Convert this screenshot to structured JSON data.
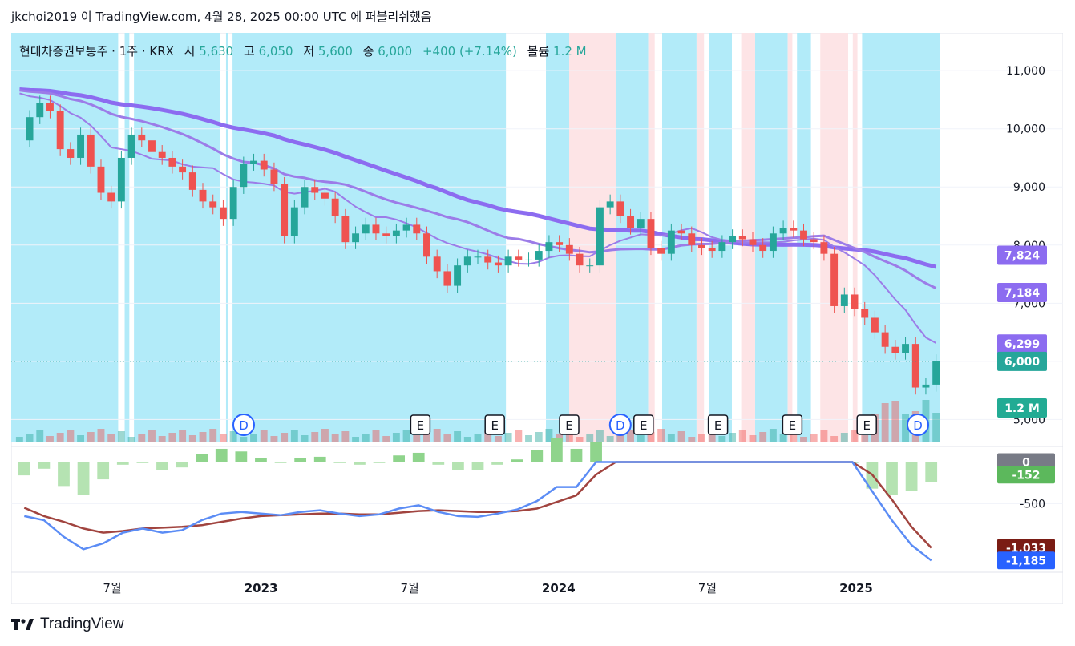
{
  "header": {
    "publish_text": "jkchoi2019 이 TradingView.com, 4월 28, 2025 00:00 UTC 에 퍼블리쉬했음"
  },
  "footer": {
    "brand": "TradingView"
  },
  "legend": {
    "symbol": "현대차증권보통주 · 1주 · KRX",
    "open_label": "시",
    "open": "5,630",
    "high_label": "고",
    "high": "6,050",
    "low_label": "저",
    "low": "5,600",
    "close_label": "종",
    "close": "6,000",
    "change": "+400 (+7.14%)",
    "volume_label": "볼륨",
    "volume": "1.2 M"
  },
  "colors": {
    "up": "#26a69a",
    "down": "#ef5350",
    "bg_blue": "#b2ebf9",
    "bg_pink": "#fde4e6",
    "ma_thick": "#8c6cf0",
    "ma_thin": "#9c7ce8",
    "ma_gold": "#f5c26b",
    "macd_line": "#5b8cf5",
    "signal_line": "#a1443f",
    "hist_up": "#8fd48c",
    "hist_down": "#b5e3b2"
  },
  "chart_data": [
    {
      "type": "candlestick",
      "timeframe": "1W",
      "x_ticks": [
        "7월",
        "2023",
        "7월",
        "2024",
        "7월",
        "2025"
      ],
      "y_ticks": [
        "11,000",
        "10,000",
        "9,000",
        "8,000",
        "7,000",
        "6,000",
        "5,000"
      ],
      "ylim": [
        4620,
        11650
      ],
      "series": [
        {
          "name": "MA long",
          "last_value": "7,824"
        },
        {
          "name": "MA mid",
          "last_value": "7,184"
        },
        {
          "name": "MA short",
          "last_value": "6,299"
        }
      ],
      "last_price": "6,000",
      "volume_last": "1.2 M",
      "event_markers": [
        "D",
        "E",
        "E",
        "E",
        "D",
        "E",
        "E",
        "E",
        "E",
        "D"
      ],
      "ohlc_last": {
        "open": 5630,
        "high": 6050,
        "low": 5600,
        "close": 6000
      },
      "price_path": [
        9800,
        10200,
        10450,
        10300,
        9650,
        9500,
        9900,
        9350,
        8900,
        8750,
        9500,
        9900,
        9800,
        9600,
        9500,
        9350,
        9250,
        8950,
        8750,
        8650,
        8450,
        9000,
        9400,
        9450,
        9300,
        9050,
        8150,
        8650,
        9000,
        8900,
        8800,
        8500,
        8050,
        8200,
        8350,
        8200,
        8150,
        8250,
        8350,
        8200,
        7800,
        7550,
        7300,
        7650,
        7800,
        7800,
        7700,
        7650,
        7800,
        7750,
        7750,
        7900,
        8050,
        8000,
        7850,
        7650,
        7650,
        8650,
        8750,
        8500,
        8300,
        8450,
        7950,
        7850,
        8250,
        8200,
        8000,
        7950,
        7900,
        8050,
        8150,
        8100,
        8000,
        7900,
        8200,
        8300,
        8250,
        8100,
        8050,
        7850,
        6950,
        7150,
        6900,
        6750,
        6500,
        6250,
        6150,
        6300,
        5550,
        5600,
        6000
      ]
    },
    {
      "type": "macd",
      "y_ticks": [
        "-500"
      ],
      "labels": {
        "hist_last": "0",
        "hist": "-152",
        "signal": "-1,033",
        "macd": "-1,185"
      },
      "macd": [
        -650,
        -700,
        -900,
        -1050,
        -980,
        -850,
        -800,
        -850,
        -820,
        -700,
        -620,
        -600,
        -620,
        -640,
        -600,
        -580,
        -620,
        -650,
        -630,
        -560,
        -520,
        -600,
        -650,
        -660,
        -620,
        -570,
        -470,
        -300,
        -300,
        0,
        0,
        0,
        0,
        0,
        0,
        0,
        0,
        0,
        0,
        0,
        0,
        0,
        0,
        -350,
        -700,
        -1000,
        -1185
      ],
      "signal": [
        -550,
        -650,
        -720,
        -800,
        -850,
        -830,
        -800,
        -790,
        -780,
        -760,
        -720,
        -680,
        -650,
        -640,
        -630,
        -620,
        -620,
        -630,
        -630,
        -610,
        -590,
        -580,
        -590,
        -600,
        -600,
        -590,
        -560,
        -480,
        -400,
        -150,
        0,
        0,
        0,
        0,
        0,
        0,
        0,
        0,
        0,
        0,
        0,
        0,
        0,
        -150,
        -450,
        -780,
        -1033
      ]
    }
  ]
}
